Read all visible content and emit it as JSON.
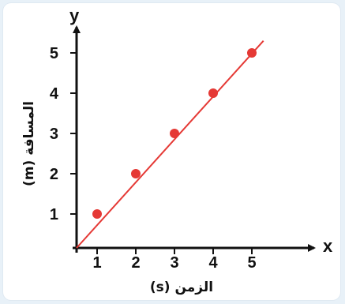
{
  "chart_data": {
    "type": "line",
    "x_axis_letter": "x",
    "y_axis_letter": "y",
    "xlabel": "الزمن (s)",
    "ylabel": "المسافة (m)",
    "x_ticks": [
      1,
      2,
      3,
      4,
      5
    ],
    "y_ticks": [
      1,
      2,
      3,
      4,
      5
    ],
    "xlim": [
      0,
      6
    ],
    "ylim": [
      0,
      6
    ],
    "grid": false,
    "series": [
      {
        "color": "#e53935",
        "points": [
          {
            "x": 1,
            "y": 1
          },
          {
            "x": 2,
            "y": 2
          },
          {
            "x": 3,
            "y": 3
          },
          {
            "x": 4,
            "y": 4
          },
          {
            "x": 5,
            "y": 5
          }
        ],
        "line_from": {
          "x": 0,
          "y": 0
        },
        "line_to": {
          "x": 5.3,
          "y": 5.3
        }
      }
    ]
  }
}
